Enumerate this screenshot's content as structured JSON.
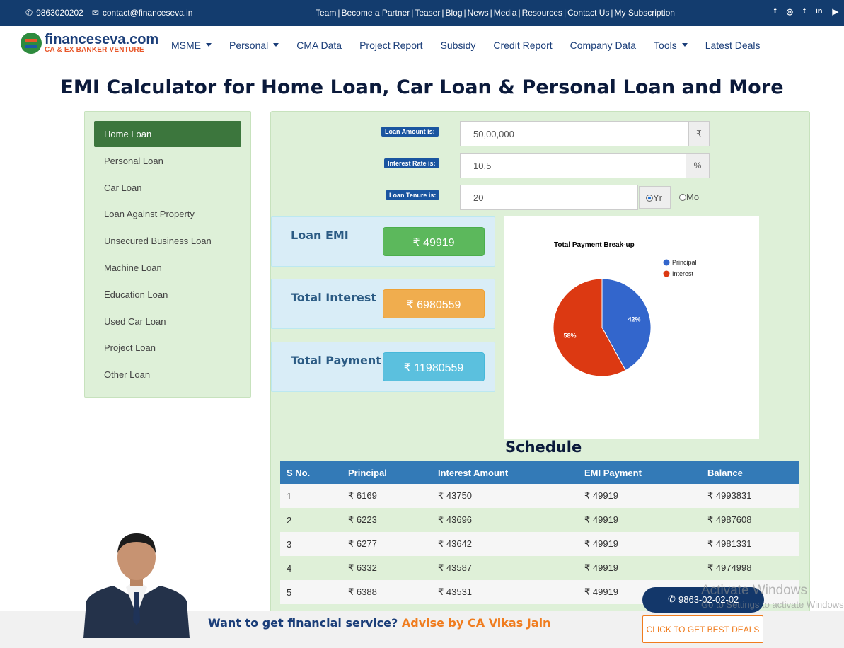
{
  "topbar": {
    "phone": "9863020202",
    "email": "contact@financeseva.in",
    "links": [
      "Team",
      "Become a Partner",
      "Teaser",
      "Blog",
      "News",
      "Media",
      "Resources",
      "Contact Us",
      "My Subscription"
    ],
    "social": [
      "f",
      "◎",
      "t",
      "in",
      "▶"
    ]
  },
  "nav": {
    "logo_main": "financeseva.com",
    "logo_sub": "CA & EX BANKER VENTURE",
    "items": [
      {
        "label": "MSME",
        "dropdown": true
      },
      {
        "label": "Personal",
        "dropdown": true
      },
      {
        "label": "CMA Data",
        "dropdown": false
      },
      {
        "label": "Project Report",
        "dropdown": false
      },
      {
        "label": "Subsidy",
        "dropdown": false
      },
      {
        "label": "Credit Report",
        "dropdown": false
      },
      {
        "label": "Company Data",
        "dropdown": false
      },
      {
        "label": "Tools",
        "dropdown": true
      },
      {
        "label": "Latest Deals",
        "dropdown": false
      }
    ]
  },
  "page_title": "EMI Calculator for Home Loan, Car Loan & Personal Loan and More",
  "sidebar": {
    "items": [
      "Home Loan",
      "Personal Loan",
      "Car Loan",
      "Loan Against Property",
      "Unsecured Business Loan",
      "Machine Loan",
      "Education Loan",
      "Used Car Loan",
      "Project Loan",
      "Other Loan"
    ],
    "active": "Home Loan"
  },
  "form": {
    "amount_label": "Loan Amount is:",
    "amount_value": "50,00,000",
    "amount_unit": "₹",
    "rate_label": "Interest Rate is:",
    "rate_value": "10.5",
    "rate_unit": "%",
    "tenure_label": "Loan Tenure is:",
    "tenure_value": "20",
    "tenure_yr": "Yr",
    "tenure_mo": "Mo",
    "tenure_selected": "Yr"
  },
  "results": {
    "emi_title": "Loan EMI",
    "emi_value": "₹ 49919",
    "interest_title": "Total Interest",
    "interest_value": "₹ 6980559",
    "payment_title": "Total Payment",
    "payment_value": "₹ 11980559",
    "colors": {
      "emi": "#5cb85c",
      "interest": "#f0ad4e",
      "payment": "#5bc0de"
    }
  },
  "chart_data": {
    "type": "pie",
    "title": "Total Payment Break-up",
    "labels": [
      "Principal",
      "Interest"
    ],
    "values": [
      42,
      58
    ],
    "value_labels": [
      "42%",
      "58%"
    ],
    "colors": [
      "#3366cc",
      "#dc3912"
    ],
    "legend": "top-right"
  },
  "schedule": {
    "title": "Schedule",
    "columns": [
      "S No.",
      "Principal",
      "Interest Amount",
      "EMI Payment",
      "Balance"
    ],
    "rows": [
      [
        "1",
        "₹ 6169",
        "₹ 43750",
        "₹ 49919",
        "₹ 4993831"
      ],
      [
        "2",
        "₹ 6223",
        "₹ 43696",
        "₹ 49919",
        "₹ 4987608"
      ],
      [
        "3",
        "₹ 6277",
        "₹ 43642",
        "₹ 49919",
        "₹ 4981331"
      ],
      [
        "4",
        "₹ 6332",
        "₹ 43587",
        "₹ 49919",
        "₹ 4974998"
      ],
      [
        "5",
        "₹ 6388",
        "₹ 43531",
        "₹ 49919",
        ""
      ]
    ]
  },
  "footer": {
    "question": "Want to get financial service?",
    "advise": "Advise by CA Vikas Jain",
    "call_number": "9863-02-02-02",
    "deals_button": "CLICK TO GET BEST DEALS"
  },
  "watermark": {
    "line1": "Activate Windows",
    "line2": "Go to Settings to activate Windows."
  }
}
